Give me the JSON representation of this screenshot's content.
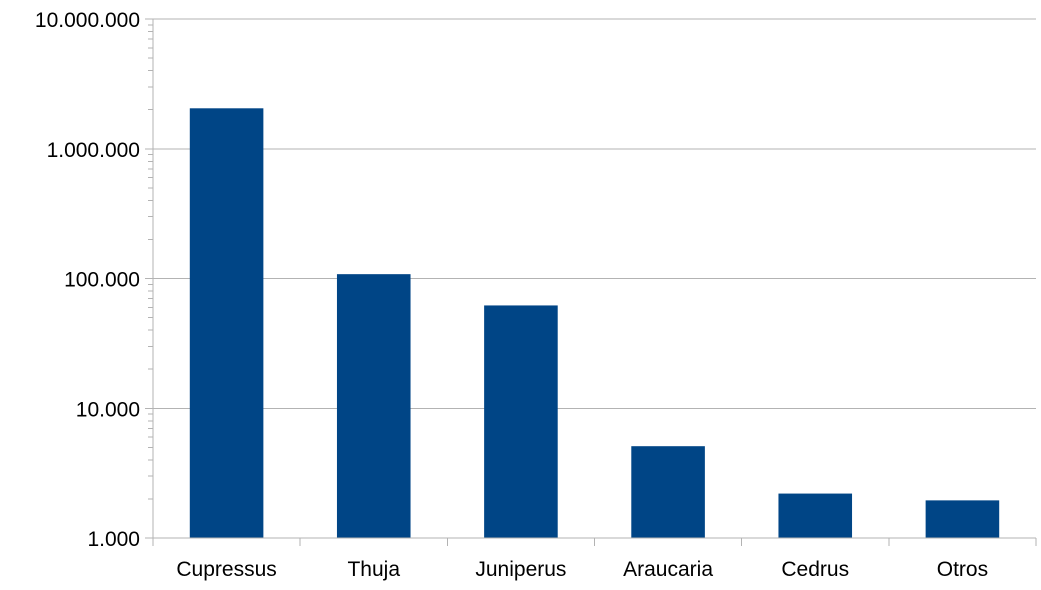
{
  "chart_data": {
    "type": "bar",
    "scale": "log",
    "categories": [
      "Cupressus",
      "Thuja",
      "Juniperus",
      "Araucaria",
      "Cedrus",
      "Otros"
    ],
    "values": [
      2050000,
      108000,
      62000,
      5100,
      2200,
      1950
    ],
    "ylim": [
      1000,
      10000000
    ],
    "y_tick_values": [
      1000,
      10000,
      100000,
      1000000,
      10000000
    ],
    "y_tick_labels": [
      "1.000",
      "10.000",
      "100.000",
      "1.000.000",
      "10.000.000"
    ],
    "grid": true,
    "legend": "none",
    "title": "",
    "xlabel": "",
    "ylabel": "",
    "colors": {
      "bar": "#004586",
      "grid": "#b3b3b3",
      "axis": "#b3b3b3",
      "text": "#000000"
    }
  }
}
